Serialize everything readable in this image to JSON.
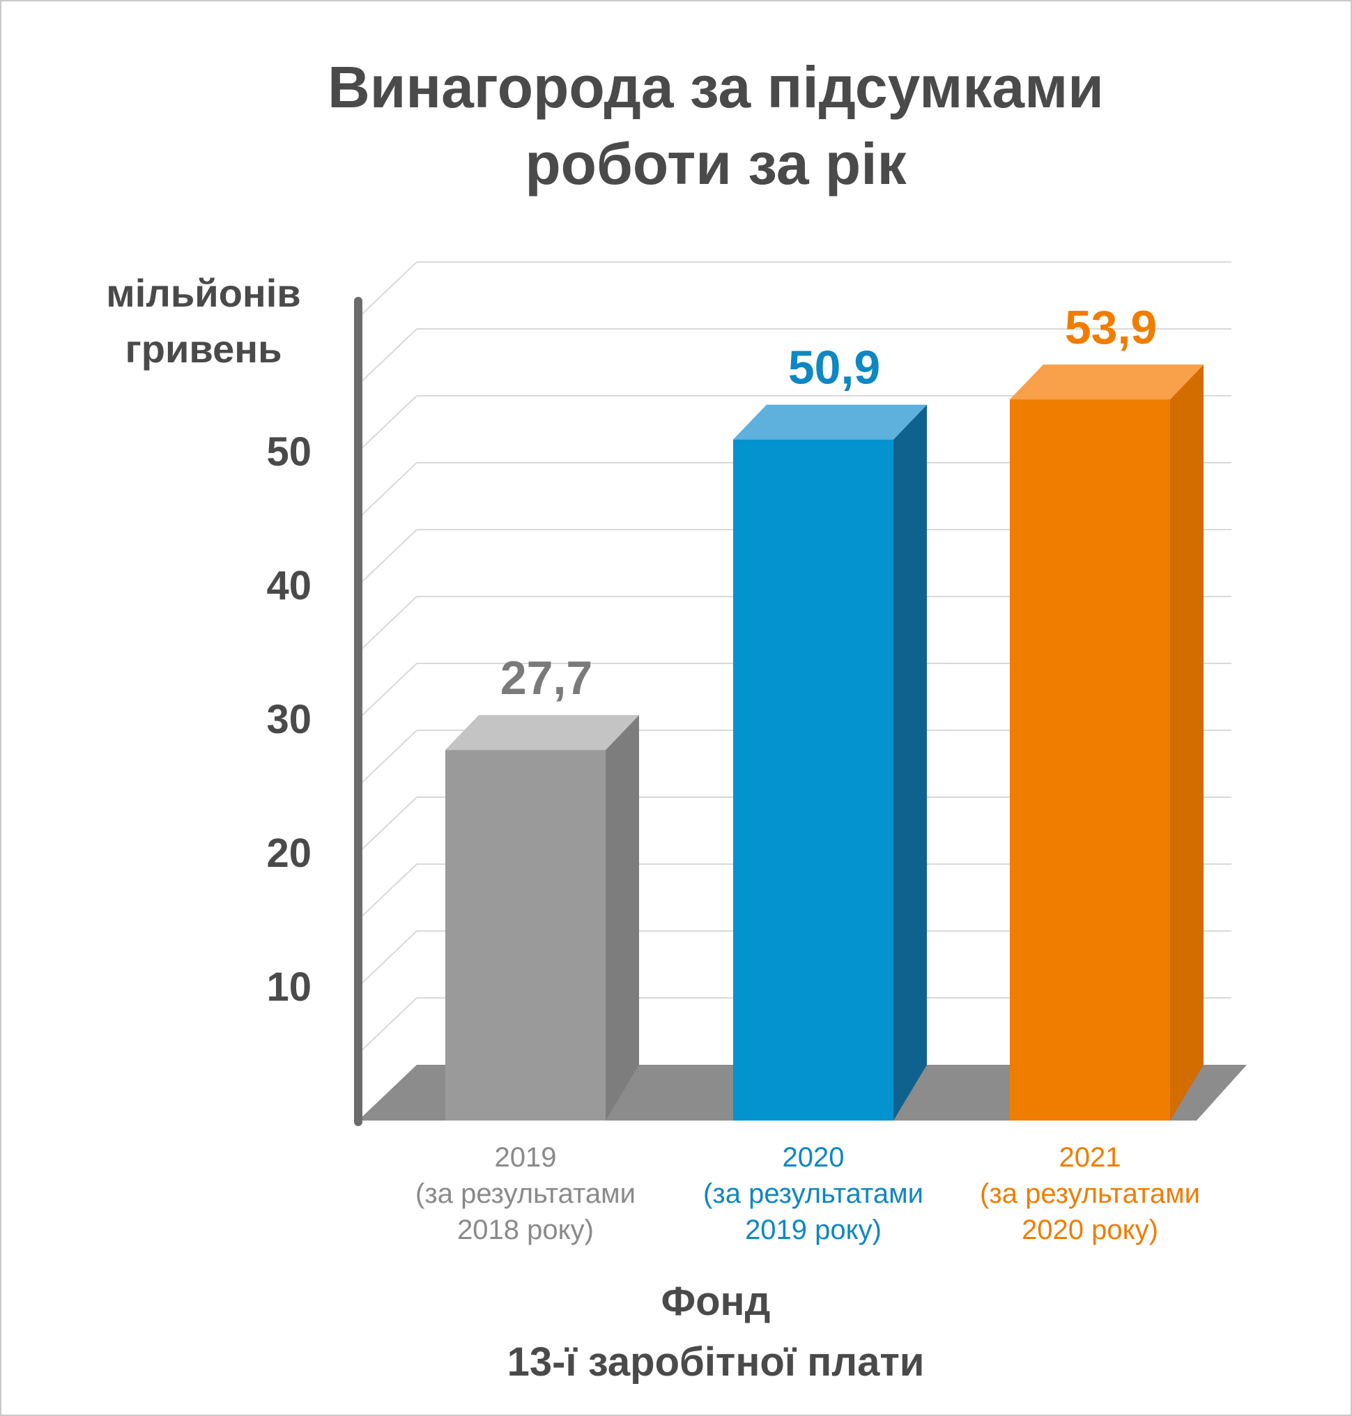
{
  "chart_data": {
    "type": "bar",
    "title_lines": [
      "Винагорода за підсумками",
      "роботи за рік"
    ],
    "ylabel_lines": [
      "мільйонів",
      "гривень"
    ],
    "ylim": [
      0,
      60
    ],
    "yticks": [
      10,
      20,
      30,
      40,
      50
    ],
    "grid": true,
    "bar_style": "3d",
    "series": [
      {
        "values": [
          27.7,
          50.9,
          53.9
        ],
        "value_labels": [
          "27,7",
          "50,9",
          "53,9"
        ]
      }
    ],
    "categories": [
      [
        "2019",
        "(за результатами",
        "2018 року)"
      ],
      [
        "2020",
        "(за результатами",
        "2019 року)"
      ],
      [
        "2021",
        "(за результатами",
        "2020 року)"
      ]
    ],
    "xlabel_lines": [
      "Фонд",
      "13-ї заробітної плати"
    ],
    "colors": {
      "text_dark": "#4a4a4a",
      "axis": "#6b6b6b",
      "grid": "#d9d9d9",
      "floor": "#8c8c8c",
      "bars": [
        {
          "front": "#9a9a9a",
          "side": "#7d7d7d",
          "top": "#c4c4c4",
          "label": "#7a7a7a",
          "category": "#8a8a8a"
        },
        {
          "front": "#0393cf",
          "side": "#0f628e",
          "top": "#5eb0dd",
          "label": "#0e87c2",
          "category": "#0e87c2"
        },
        {
          "front": "#ef7d00",
          "side": "#d46d00",
          "top": "#f9a04a",
          "label": "#ef7d00",
          "category": "#ef7d00"
        }
      ]
    }
  }
}
